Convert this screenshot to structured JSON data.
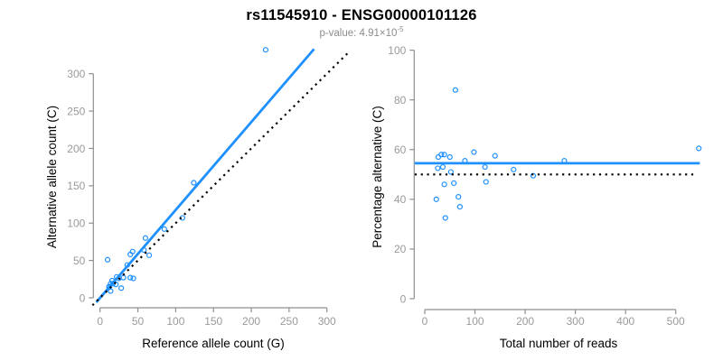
{
  "title": "rs11545910 - ENSG00000101126",
  "subtitle": {
    "prefix": "p-value: ",
    "mantissa": "4.91×10",
    "exponent": "-5"
  },
  "colors": {
    "accent_blue": "#1E90FF",
    "axis_gray": "#8f8f8f",
    "tick_label_gray": "#9a9a9a",
    "line_black": "#000000",
    "subtitle_gray": "#8c8c8c"
  },
  "chart_data": [
    {
      "type": "scatter",
      "panel": "left",
      "title": "",
      "xlabel": "Reference allele count (G)",
      "ylabel": "Alternative allele count (C)",
      "xticks": [
        0,
        50,
        100,
        150,
        200,
        250,
        300
      ],
      "yticks": [
        0,
        50,
        100,
        150,
        200,
        250,
        300
      ],
      "xlim": [
        -13,
        331
      ],
      "ylim": [
        -13,
        334
      ],
      "grid": false,
      "legend": null,
      "points": [
        [
          10,
          51
        ],
        [
          12,
          14
        ],
        [
          12,
          15
        ],
        [
          14,
          9
        ],
        [
          14,
          19
        ],
        [
          16,
          23
        ],
        [
          17,
          19
        ],
        [
          21,
          18
        ],
        [
          22,
          28
        ],
        [
          25,
          26
        ],
        [
          28,
          13
        ],
        [
          31,
          27
        ],
        [
          36,
          44
        ],
        [
          40,
          27
        ],
        [
          40,
          58
        ],
        [
          43,
          62
        ],
        [
          44,
          26
        ],
        [
          58,
          64
        ],
        [
          60,
          80
        ],
        [
          65,
          57
        ],
        [
          85,
          92
        ],
        [
          109,
          107
        ],
        [
          124,
          154
        ],
        [
          219,
          332
        ]
      ],
      "lines": [
        {
          "name": "regression-line",
          "style": "solid",
          "color_key": "accent_blue",
          "x1": -5,
          "y1": -6,
          "x2": 283,
          "y2": 333
        },
        {
          "name": "identity-line",
          "style": "dotted",
          "color_key": "line_black",
          "x1": -10,
          "y1": -10,
          "x2": 329,
          "y2": 329
        }
      ]
    },
    {
      "type": "scatter",
      "panel": "right",
      "title": "",
      "xlabel": "Total number of reads",
      "ylabel": "Percentage alternative (C)",
      "xticks": [
        0,
        100,
        200,
        300,
        400,
        500
      ],
      "yticks": [
        0,
        20,
        40,
        60,
        80,
        100
      ],
      "xlim": [
        -22,
        568
      ],
      "ylim": [
        -4,
        104
      ],
      "grid": false,
      "legend": null,
      "points": [
        [
          23,
          40
        ],
        [
          26,
          52.5
        ],
        [
          27,
          57
        ],
        [
          33,
          58
        ],
        [
          36,
          53
        ],
        [
          39,
          46
        ],
        [
          39,
          58
        ],
        [
          41,
          32.5
        ],
        [
          50,
          57
        ],
        [
          52,
          51
        ],
        [
          58,
          46.5
        ],
        [
          61,
          84
        ],
        [
          67,
          41
        ],
        [
          70,
          37
        ],
        [
          80,
          55.5
        ],
        [
          98,
          59
        ],
        [
          120,
          53
        ],
        [
          122,
          47
        ],
        [
          140,
          57.5
        ],
        [
          177,
          52
        ],
        [
          216,
          49.5
        ],
        [
          278,
          55.5
        ],
        [
          546,
          60.5
        ]
      ],
      "lines": [
        {
          "name": "mean-percentage-line",
          "style": "solid",
          "color_key": "accent_blue",
          "x1": -20,
          "y1": 54.5,
          "x2": 548,
          "y2": 54.5
        },
        {
          "name": "expected-50-percent-line",
          "style": "dotted",
          "color_key": "line_black",
          "x1": -20,
          "y1": 50,
          "x2": 537,
          "y2": 50
        }
      ]
    }
  ]
}
